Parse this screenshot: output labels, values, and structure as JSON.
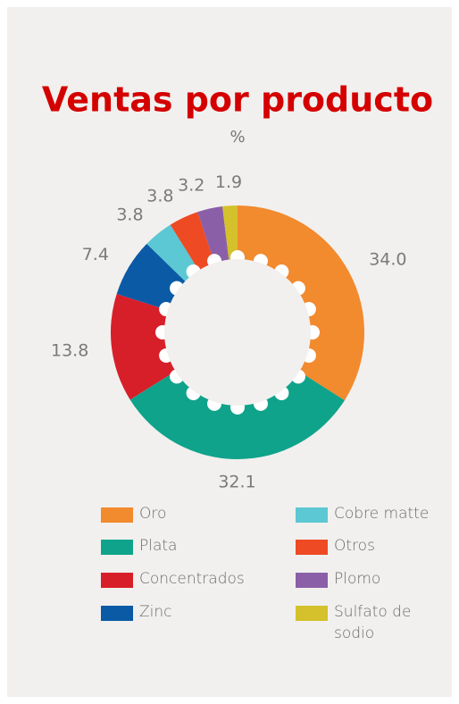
{
  "chart_data": {
    "type": "donut",
    "title": "Ventas por producto",
    "subtitle": "%",
    "categories": [
      "Oro",
      "Plata",
      "Concentrados",
      "Zinc",
      "Cobre matte",
      "Otros",
      "Plomo",
      "Sulfato de sodio"
    ],
    "values": [
      34.0,
      32.1,
      13.8,
      7.4,
      3.8,
      3.8,
      3.2,
      1.9
    ],
    "value_labels": [
      "34.0",
      "32.1",
      "13.8",
      "7.4",
      "3.8",
      "3.8",
      "3.2",
      "1.9"
    ],
    "colors": [
      "#f28a2e",
      "#0fa38b",
      "#d71f2a",
      "#0b5aa6",
      "#5cc8d3",
      "#ee4a23",
      "#8b5fa8",
      "#d4c12b"
    ]
  }
}
